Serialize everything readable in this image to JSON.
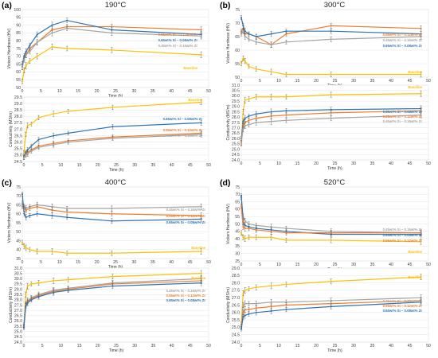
{
  "colors": {
    "orange": "#ed7d31",
    "blue": "#2e75b6",
    "gray": "#a5a5a5",
    "yellow": "#ffc000"
  },
  "chart_data": [
    {
      "panel": "(a)",
      "title": "190°C",
      "type": "line",
      "xlabel": "Time (h)",
      "ylabel": "Vickers Hardness (HV)",
      "xlim": [
        0,
        50
      ],
      "ylim": [
        50,
        100
      ],
      "series": [
        {
          "name": "0.55wt% Si – 0.12wt% Zr",
          "color": "orange",
          "x": [
            0,
            0.5,
            1,
            2,
            4,
            8,
            12,
            24,
            48
          ],
          "y": [
            63,
            69,
            71,
            75,
            79,
            87,
            89,
            89,
            87
          ]
        },
        {
          "name": "0.65wt% Si – 0.08wt% Zr",
          "color": "blue",
          "x": [
            0,
            0.5,
            1,
            2,
            4,
            8,
            12,
            24,
            48
          ],
          "y": [
            65,
            70,
            73,
            77,
            84,
            90,
            93,
            87,
            84
          ]
        },
        {
          "name": "0.45wt% Si – 0.16wt% Zr",
          "color": "gray",
          "x": [
            0,
            0.5,
            1,
            2,
            4,
            8,
            12,
            24,
            48
          ],
          "y": [
            63,
            68,
            71,
            73,
            79,
            85,
            88,
            85,
            83
          ]
        },
        {
          "name": "Baseline",
          "color": "yellow",
          "x": [
            0,
            0.5,
            1,
            2,
            4,
            8,
            12,
            24,
            48
          ],
          "y": [
            54,
            61,
            64,
            67,
            70,
            76,
            75,
            74,
            71
          ]
        }
      ]
    },
    {
      "panel": "",
      "title": "",
      "type": "line",
      "xlabel": "Time (h)",
      "ylabel": "Conductivity (MS/m)",
      "xlim": [
        0,
        50
      ],
      "ylim": [
        24.5,
        29.5
      ],
      "series": [
        {
          "name": "Baseline",
          "color": "yellow",
          "x": [
            0,
            0.5,
            1,
            2,
            4,
            8,
            12,
            24,
            48
          ],
          "y": [
            25.2,
            26.6,
            27.3,
            27.4,
            27.9,
            28.2,
            28.4,
            28.7,
            29.1
          ]
        },
        {
          "name": "0.65wt% Si – 0.08wt% Zr",
          "color": "blue",
          "x": [
            0,
            0.5,
            1,
            2,
            4,
            8,
            12,
            24,
            48
          ],
          "y": [
            24.9,
            25.2,
            25.4,
            25.7,
            26.2,
            26.5,
            26.7,
            27.2,
            27.5
          ]
        },
        {
          "name": "0.55wt% Si – 0.12wt% Zr",
          "color": "orange",
          "x": [
            0,
            0.5,
            1,
            2,
            4,
            8,
            12,
            24,
            48
          ],
          "y": [
            24.8,
            25.1,
            25.2,
            25.4,
            25.7,
            25.9,
            26.1,
            26.4,
            26.7
          ]
        },
        {
          "name": "0.45wt% Si – 0.16wt% Zr",
          "color": "gray",
          "x": [
            0,
            0.5,
            1,
            2,
            4,
            8,
            12,
            24,
            48
          ],
          "y": [
            24.8,
            25.0,
            25.1,
            25.3,
            25.6,
            25.8,
            26.0,
            26.3,
            26.6
          ]
        }
      ]
    },
    {
      "panel": "(b)",
      "title": "300°C",
      "type": "line",
      "xlabel": "Time (h)",
      "ylabel": "Vickers Hardness (HV)",
      "xlim": [
        0,
        50
      ],
      "ylim": [
        50,
        75
      ],
      "series": [
        {
          "name": "0.55wt% Si – 0.12wt% Zr",
          "color": "orange",
          "x": [
            0,
            0.5,
            1,
            2,
            4,
            8,
            12,
            24,
            48
          ],
          "y": [
            67,
            68,
            66,
            66,
            65,
            62,
            66,
            69,
            68
          ]
        },
        {
          "name": "0.45wt% Si – 0.16wt% Zr",
          "color": "gray",
          "x": [
            0,
            0.5,
            1,
            2,
            4,
            8,
            12,
            24,
            48
          ],
          "y": [
            66,
            67,
            65,
            64,
            63,
            62,
            63,
            64,
            65
          ]
        },
        {
          "name": "0.65wt% Si – 0.08wt% Zr",
          "color": "blue",
          "x": [
            0,
            0.5,
            1,
            2,
            4,
            8,
            12,
            24,
            48
          ],
          "y": [
            72,
            69,
            67,
            66,
            65,
            66,
            67,
            67,
            66
          ]
        },
        {
          "name": "Baseline",
          "color": "yellow",
          "x": [
            0,
            0.5,
            1,
            2,
            4,
            8,
            12,
            24,
            48
          ],
          "y": [
            55,
            57,
            56,
            54,
            53,
            52,
            51,
            51,
            51
          ]
        }
      ]
    },
    {
      "panel": "",
      "title": "",
      "type": "line",
      "xlabel": "Time (h)",
      "ylabel": "Conductivity (MS/m)",
      "xlim": [
        0,
        50
      ],
      "ylim": [
        24.0,
        31.0
      ],
      "series": [
        {
          "name": "Baseline",
          "color": "yellow",
          "x": [
            0,
            0.5,
            1,
            2,
            4,
            8,
            12,
            24,
            48
          ],
          "y": [
            25.5,
            28.5,
            29.6,
            29.7,
            29.9,
            29.9,
            29.9,
            30.1,
            30.2
          ]
        },
        {
          "name": "0.65wt% Si – 0.08wt% Zr",
          "color": "blue",
          "x": [
            0,
            0.5,
            1,
            2,
            4,
            8,
            12,
            24,
            48
          ],
          "y": [
            26.0,
            27.6,
            27.9,
            28.1,
            28.3,
            28.5,
            28.6,
            28.7,
            28.8
          ]
        },
        {
          "name": "0.55wt% Si – 0.12wt% Zr",
          "color": "orange",
          "x": [
            0,
            0.5,
            1,
            2,
            4,
            8,
            12,
            24,
            48
          ],
          "y": [
            25.8,
            27.2,
            27.5,
            27.7,
            27.9,
            28.1,
            28.2,
            28.4,
            28.6
          ]
        },
        {
          "name": "0.45wt% Si – 0.16wt% Zr",
          "color": "gray",
          "x": [
            0,
            0.5,
            1,
            2,
            4,
            8,
            12,
            24,
            48
          ],
          "y": [
            25.6,
            26.9,
            27.2,
            27.3,
            27.5,
            27.6,
            27.7,
            27.9,
            28.2
          ]
        }
      ]
    },
    {
      "panel": "(c)",
      "title": "400°C",
      "type": "line",
      "xlabel": "Time (h)",
      "ylabel": "Vickers Hardness (HV)",
      "xlim": [
        0,
        50
      ],
      "ylim": [
        35,
        75
      ],
      "series": [
        {
          "name": "0.45wt% Si – 0.16wt% Zr",
          "color": "gray",
          "x": [
            0,
            0.5,
            1,
            2,
            4,
            8,
            12,
            24,
            48
          ],
          "y": [
            66,
            64,
            63,
            64,
            65,
            64,
            63,
            63,
            64
          ]
        },
        {
          "name": "0.55wt% Si – 0.12wt% Zr",
          "color": "orange",
          "x": [
            0,
            0.5,
            1,
            2,
            4,
            8,
            12,
            24,
            48
          ],
          "y": [
            64,
            63,
            62,
            63,
            64,
            62,
            61,
            60,
            59
          ]
        },
        {
          "name": "0.65wt% Si – 0.08wt% Zr",
          "color": "blue",
          "x": [
            0,
            0.5,
            1,
            2,
            4,
            8,
            12,
            24,
            48
          ],
          "y": [
            71,
            60,
            58,
            59,
            60,
            59,
            58,
            56,
            57
          ]
        },
        {
          "name": "Baseline",
          "color": "yellow",
          "x": [
            0,
            0.5,
            1,
            2,
            4,
            8,
            12,
            24,
            48
          ],
          "y": [
            44,
            42,
            41,
            40,
            39,
            39,
            38,
            38,
            39
          ]
        }
      ]
    },
    {
      "panel": "",
      "title": "",
      "type": "line",
      "xlabel": "Time (h)",
      "ylabel": "Conductivity (MS/m)",
      "xlim": [
        0,
        50
      ],
      "ylim": [
        24.0,
        31.0
      ],
      "series": [
        {
          "name": "Baseline",
          "color": "yellow",
          "x": [
            0,
            0.5,
            1,
            2,
            4,
            8,
            12,
            24,
            48
          ],
          "y": [
            25.5,
            28.5,
            29.3,
            29.5,
            29.6,
            29.8,
            29.9,
            30.2,
            30.5
          ]
        },
        {
          "name": "0.45wt% Si – 0.16wt% Zr",
          "color": "gray",
          "x": [
            0,
            0.5,
            1,
            2,
            4,
            8,
            12,
            24,
            48
          ],
          "y": [
            25.6,
            27.6,
            27.9,
            28.2,
            28.5,
            28.9,
            29.1,
            29.6,
            30.0
          ]
        },
        {
          "name": "0.55wt% Si – 0.12wt% Zr",
          "color": "orange",
          "x": [
            0,
            0.5,
            1,
            2,
            4,
            8,
            12,
            24,
            48
          ],
          "y": [
            25.5,
            27.5,
            27.8,
            28.1,
            28.4,
            28.8,
            29.0,
            29.5,
            29.8
          ]
        },
        {
          "name": "0.65wt% Si – 0.08wt% Zr",
          "color": "blue",
          "x": [
            0,
            0.5,
            1,
            2,
            4,
            8,
            12,
            24,
            48
          ],
          "y": [
            25.4,
            27.4,
            27.7,
            28.0,
            28.3,
            28.7,
            28.9,
            29.3,
            29.6
          ]
        }
      ]
    },
    {
      "panel": "(d)",
      "title": "520°C",
      "type": "line",
      "xlabel": "Time (h)",
      "ylabel": "Vickers Hardness (HV)",
      "xlim": [
        0,
        50
      ],
      "ylim": [
        25,
        75
      ],
      "series": [
        {
          "name": "0.45wt% Si – 0.16wt% Zr",
          "color": "gray",
          "x": [
            0,
            0.5,
            1,
            2,
            4,
            8,
            12,
            24,
            48
          ],
          "y": [
            68,
            55,
            52,
            50,
            49,
            48,
            47,
            45,
            44
          ]
        },
        {
          "name": "0.65wt% Si – 0.08wt% Zr",
          "color": "blue",
          "x": [
            0,
            0.5,
            1,
            2,
            4,
            8,
            12,
            24,
            48
          ],
          "y": [
            69,
            51,
            49,
            48,
            47,
            46,
            45,
            43,
            43
          ]
        },
        {
          "name": "0.55wt% Si – 0.12wt% Zr",
          "color": "orange",
          "x": [
            0,
            0.5,
            1,
            2,
            4,
            8,
            12,
            24,
            48
          ],
          "y": [
            62,
            48,
            47,
            47,
            46,
            45,
            44,
            44,
            44
          ]
        },
        {
          "name": "Baseline",
          "color": "yellow",
          "x": [
            0,
            0.5,
            1,
            2,
            4,
            8,
            12,
            24,
            48
          ],
          "y": [
            44,
            41,
            40,
            41,
            41,
            41,
            39,
            39,
            38
          ]
        }
      ]
    },
    {
      "panel": "",
      "title": "",
      "type": "line",
      "xlabel": "Time (h)",
      "ylabel": "Conductivity (MS/m)",
      "xlim": [
        0,
        50
      ],
      "ylim": [
        24.0,
        29.0
      ],
      "series": [
        {
          "name": "Baseline",
          "color": "yellow",
          "x": [
            0,
            0.5,
            1,
            2,
            4,
            8,
            12,
            24,
            48
          ],
          "y": [
            25.2,
            27.3,
            27.5,
            27.6,
            27.7,
            27.8,
            27.9,
            28.1,
            28.4
          ]
        },
        {
          "name": "0.45wt% Si – 0.16wt% Zr",
          "color": "gray",
          "x": [
            0,
            0.5,
            1,
            2,
            4,
            8,
            12,
            24,
            48
          ],
          "y": [
            25.0,
            26.5,
            26.6,
            26.6,
            26.6,
            26.7,
            26.7,
            26.8,
            27.0
          ]
        },
        {
          "name": "0.55wt% Si – 0.12wt% Zr",
          "color": "orange",
          "x": [
            0,
            0.5,
            1,
            2,
            4,
            8,
            12,
            24,
            48
          ],
          "y": [
            25.0,
            26.0,
            26.2,
            26.2,
            26.3,
            26.4,
            26.5,
            26.6,
            26.8
          ]
        },
        {
          "name": "0.65wt% Si – 0.08wt% Zr",
          "color": "blue",
          "x": [
            0,
            0.5,
            1,
            2,
            4,
            8,
            12,
            24,
            48
          ],
          "y": [
            24.9,
            25.7,
            25.8,
            25.9,
            26.0,
            26.1,
            26.2,
            26.4,
            26.7
          ]
        }
      ]
    }
  ]
}
